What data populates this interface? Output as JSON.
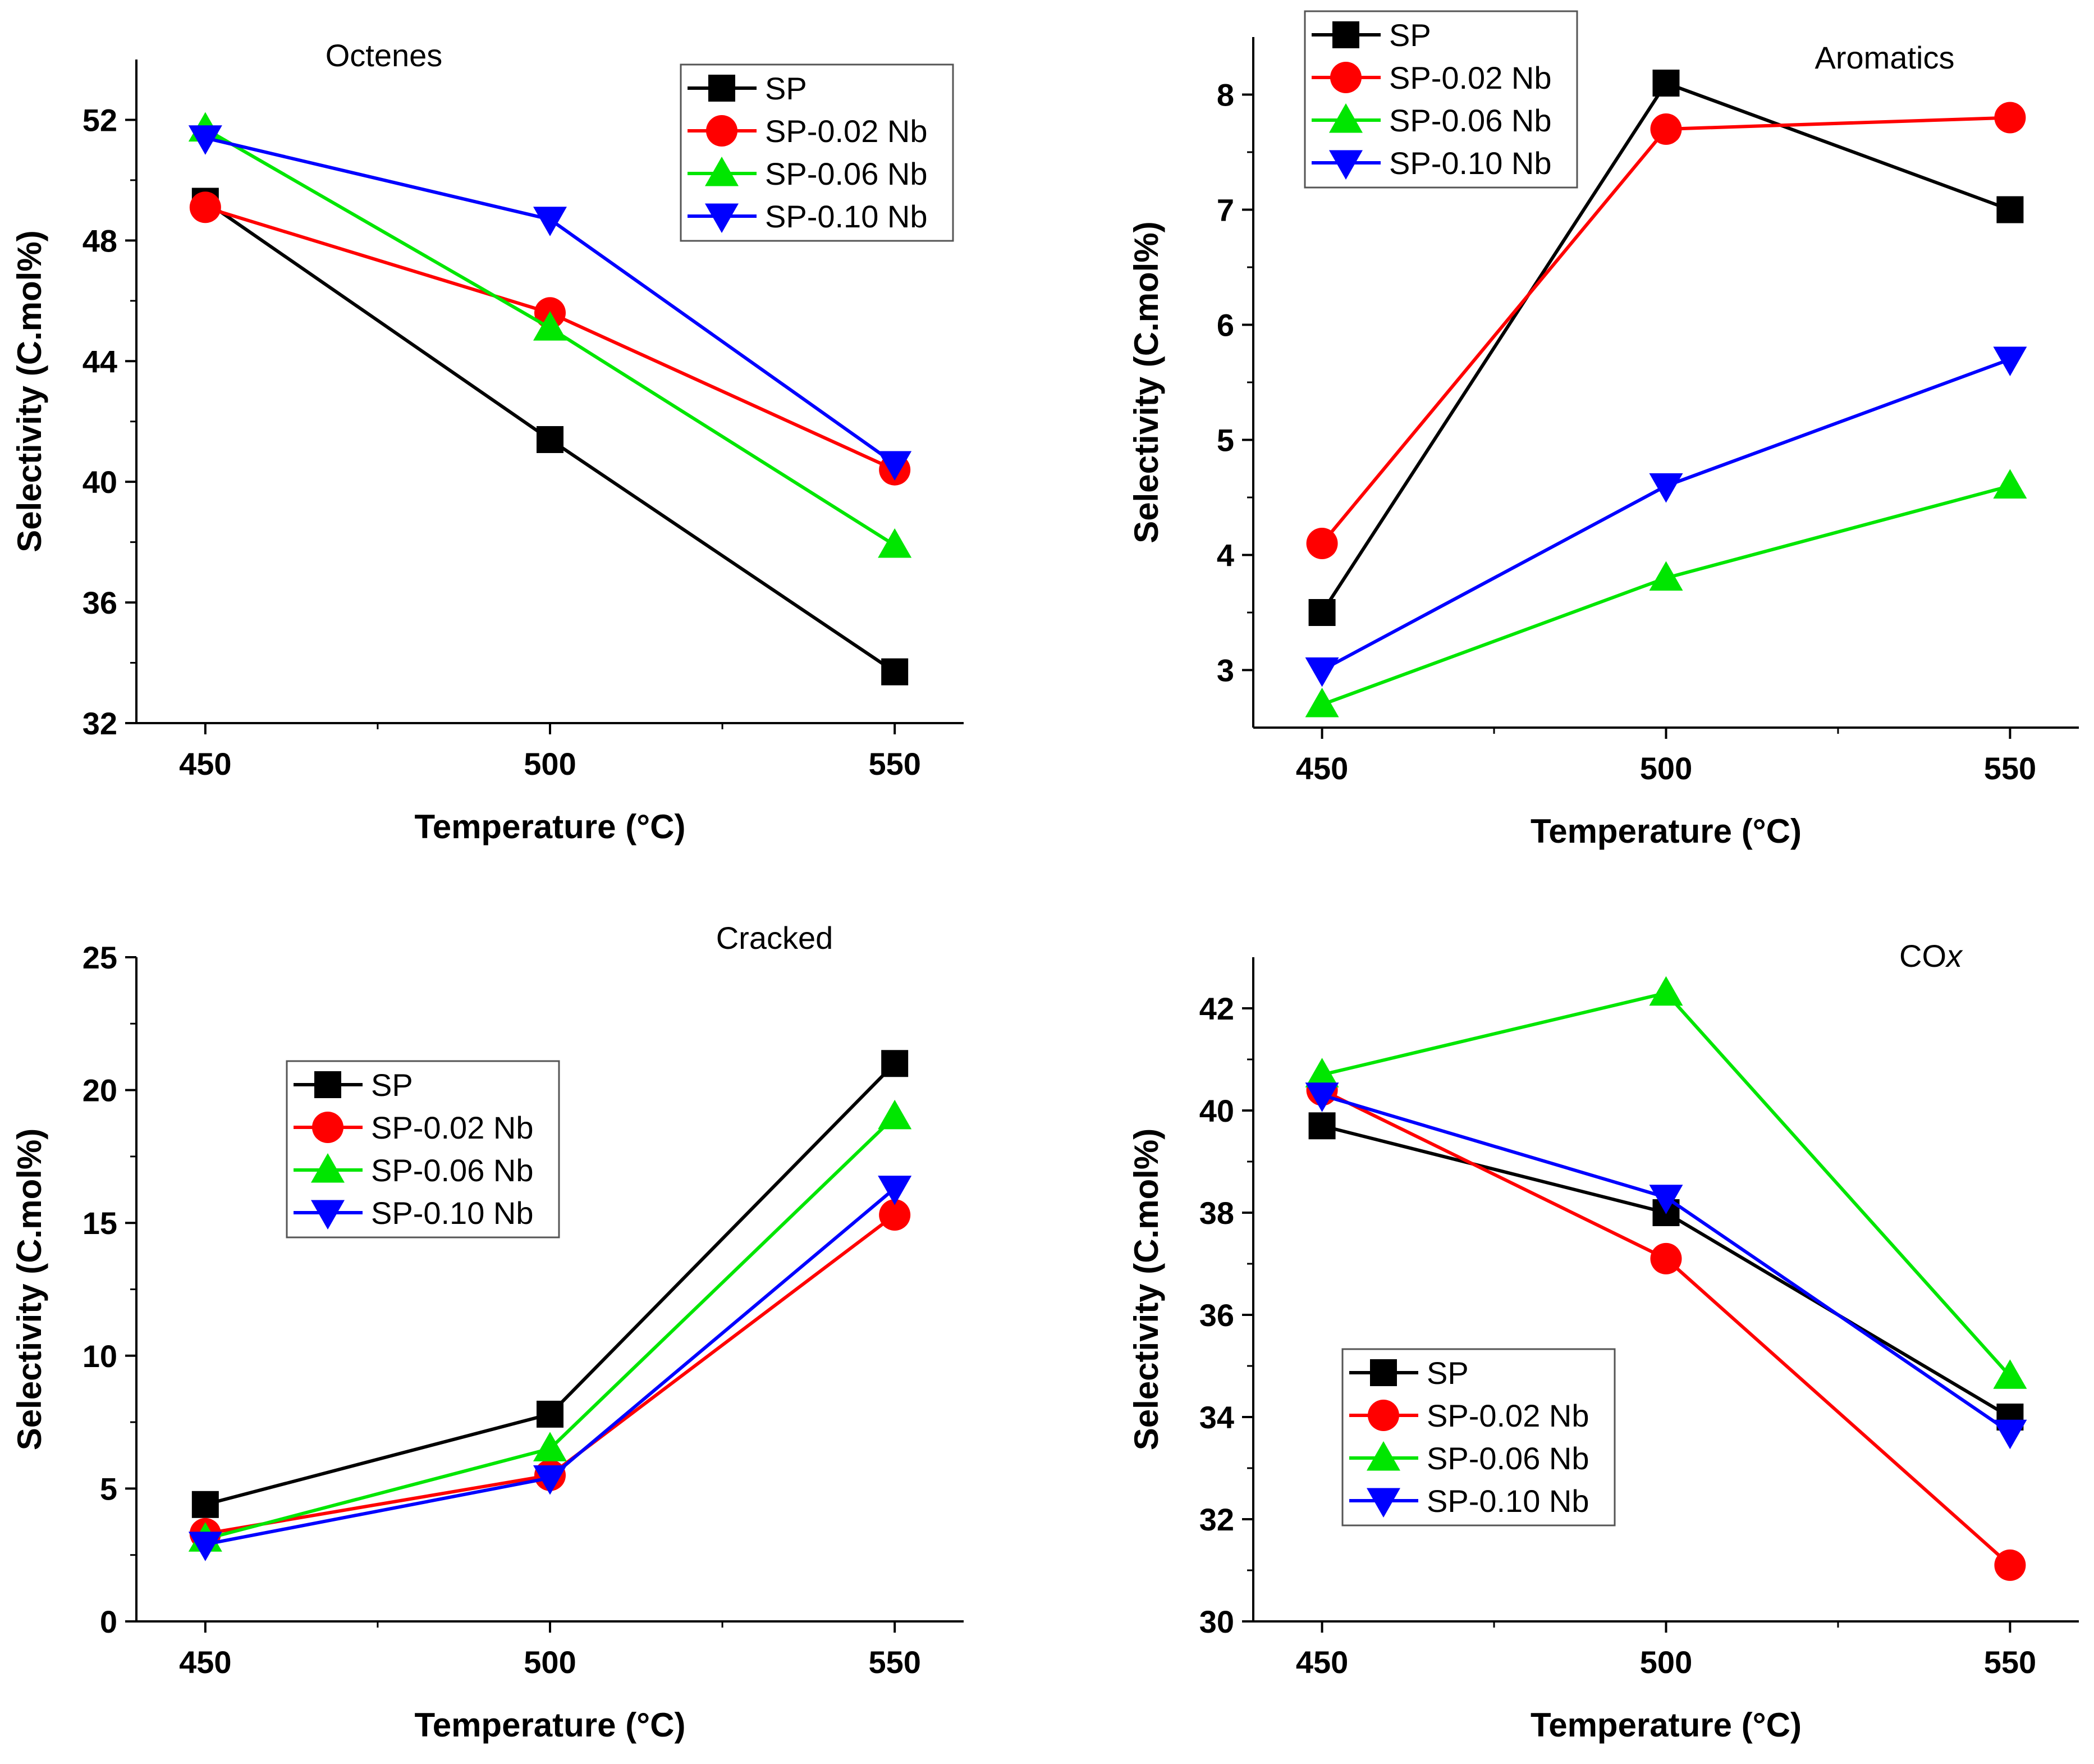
{
  "colors": {
    "SP": "#000000",
    "SP-0.02 Nb": "#ff0000",
    "SP-0.06 Nb": "#00e600",
    "SP-0.10 Nb": "#0000ff"
  },
  "chart_data": [
    {
      "type": "line",
      "title": "Octenes",
      "xlabel": "Temperature (°C)",
      "ylabel": "Selectivity (C.mol%)",
      "x": [
        450,
        500,
        550
      ],
      "x_ticks": [
        "450",
        "500",
        "550"
      ],
      "xlim": [
        440,
        560
      ],
      "ylim": [
        32,
        54
      ],
      "y_ticks": [
        "32",
        "36",
        "40",
        "44",
        "48",
        "52"
      ],
      "legend_position": "top-right",
      "series": [
        {
          "name": "SP",
          "marker": "square",
          "values": [
            49.3,
            41.4,
            33.7
          ]
        },
        {
          "name": "SP-0.02 Nb",
          "marker": "circle",
          "values": [
            49.1,
            45.6,
            40.4
          ]
        },
        {
          "name": "SP-0.06 Nb",
          "marker": "triangle-up",
          "values": [
            51.7,
            45.1,
            37.9
          ]
        },
        {
          "name": "SP-0.10 Nb",
          "marker": "triangle-down",
          "values": [
            51.4,
            48.7,
            40.6
          ]
        }
      ]
    },
    {
      "type": "line",
      "title": "Aromatics",
      "xlabel": "Temperature (°C)",
      "ylabel": "Selectivity (C.mol%)",
      "x": [
        450,
        500,
        550
      ],
      "x_ticks": [
        "450",
        "500",
        "550"
      ],
      "xlim": [
        440,
        560
      ],
      "ylim": [
        2.5,
        8.5
      ],
      "y_ticks": [
        "3",
        "4",
        "5",
        "6",
        "7",
        "8"
      ],
      "legend_position": "top-left",
      "series": [
        {
          "name": "SP",
          "marker": "square",
          "values": [
            3.5,
            8.1,
            7.0
          ]
        },
        {
          "name": "SP-0.02 Nb",
          "marker": "circle",
          "values": [
            4.1,
            7.7,
            7.8
          ]
        },
        {
          "name": "SP-0.06 Nb",
          "marker": "triangle-up",
          "values": [
            2.7,
            3.8,
            4.6
          ]
        },
        {
          "name": "SP-0.10 Nb",
          "marker": "triangle-down",
          "values": [
            3.0,
            4.6,
            5.7
          ]
        }
      ]
    },
    {
      "type": "line",
      "title": "Cracked",
      "xlabel": "Temperature (°C)",
      "ylabel": "Selectivity (C.mol%)",
      "x": [
        450,
        500,
        550
      ],
      "x_ticks": [
        "450",
        "500",
        "550"
      ],
      "xlim": [
        440,
        560
      ],
      "ylim": [
        0,
        25
      ],
      "y_ticks": [
        "0",
        "5",
        "10",
        "15",
        "20",
        "25"
      ],
      "legend_position": "center-left",
      "series": [
        {
          "name": "SP",
          "marker": "square",
          "values": [
            4.4,
            7.8,
            21.0
          ]
        },
        {
          "name": "SP-0.02 Nb",
          "marker": "circle",
          "values": [
            3.3,
            5.5,
            15.3
          ]
        },
        {
          "name": "SP-0.06 Nb",
          "marker": "triangle-up",
          "values": [
            3.1,
            6.5,
            19.0
          ]
        },
        {
          "name": "SP-0.10 Nb",
          "marker": "triangle-down",
          "values": [
            2.9,
            5.4,
            16.3
          ]
        }
      ]
    },
    {
      "type": "line",
      "title": "CO",
      "title_italic_suffix": "x",
      "xlabel": "Temperature (°C)",
      "ylabel": "Selectivity (C.mol%)",
      "x": [
        450,
        500,
        550
      ],
      "x_ticks": [
        "450",
        "500",
        "550"
      ],
      "xlim": [
        440,
        560
      ],
      "ylim": [
        30,
        43
      ],
      "y_ticks": [
        "30",
        "32",
        "34",
        "36",
        "38",
        "40",
        "42"
      ],
      "legend_position": "bottom-left",
      "series": [
        {
          "name": "SP",
          "marker": "square",
          "values": [
            39.7,
            38.0,
            34.0
          ]
        },
        {
          "name": "SP-0.02 Nb",
          "marker": "circle",
          "values": [
            40.4,
            37.1,
            31.1
          ]
        },
        {
          "name": "SP-0.06 Nb",
          "marker": "triangle-up",
          "values": [
            40.7,
            42.3,
            34.8
          ]
        },
        {
          "name": "SP-0.10 Nb",
          "marker": "triangle-down",
          "values": [
            40.3,
            38.3,
            33.7
          ]
        }
      ]
    }
  ]
}
